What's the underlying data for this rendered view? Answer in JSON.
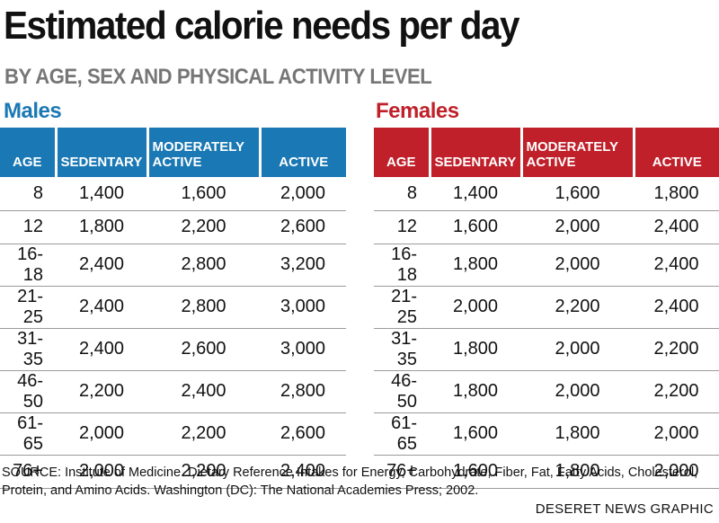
{
  "header": {
    "title": "Estimated calorie needs per day",
    "subtitle": "BY AGE, SEX AND PHYSICAL ACTIVITY LEVEL"
  },
  "colors": {
    "males": "#1a78b4",
    "females": "#c0202a",
    "subtitle": "#767676"
  },
  "chart_data": {
    "type": "table",
    "title": "Estimated calorie needs per day",
    "subtitle": "BY AGE, SEX AND PHYSICAL ACTIVITY LEVEL",
    "columns": [
      "AGE",
      "SEDENTARY",
      "MODERATELY ACTIVE",
      "ACTIVE"
    ],
    "tables": [
      {
        "name": "Males",
        "rows": [
          [
            "8",
            "1,400",
            "1,600",
            "2,000"
          ],
          [
            "12",
            "1,800",
            "2,200",
            "2,600"
          ],
          [
            "16-18",
            "2,400",
            "2,800",
            "3,200"
          ],
          [
            "21-25",
            "2,400",
            "2,800",
            "3,000"
          ],
          [
            "31-35",
            "2,400",
            "2,600",
            "3,000"
          ],
          [
            "46-50",
            "2,200",
            "2,400",
            "2,800"
          ],
          [
            "61-65",
            "2,000",
            "2,200",
            "2,600"
          ],
          [
            "76+",
            "2,000",
            "2,200",
            "2,400"
          ]
        ]
      },
      {
        "name": "Females",
        "rows": [
          [
            "8",
            "1,400",
            "1,600",
            "1,800"
          ],
          [
            "12",
            "1,600",
            "2,000",
            "2,400"
          ],
          [
            "16-18",
            "1,800",
            "2,000",
            "2,400"
          ],
          [
            "21-25",
            "2,000",
            "2,200",
            "2,400"
          ],
          [
            "31-35",
            "1,800",
            "2,000",
            "2,200"
          ],
          [
            "46-50",
            "1,800",
            "2,000",
            "2,200"
          ],
          [
            "61-65",
            "1,600",
            "1,800",
            "2,000"
          ],
          [
            "76+",
            "1,600",
            "1,800",
            "2,000"
          ]
        ]
      }
    ]
  },
  "footer": {
    "source": "SOURCE: Institute of Medicine. Dietary Reference Intakes for Energy, Carbohydrate, Fiber, Fat, Fatty Acids, Cholesterol, Protein, and Amino Acids. Washington (DC): The National Academies Press; 2002.",
    "credit": "DESERET NEWS GRAPHIC"
  }
}
